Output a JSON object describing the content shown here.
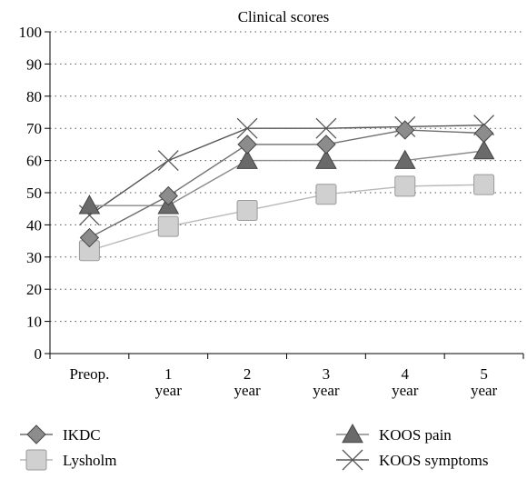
{
  "chart_data": {
    "type": "line",
    "title": "Clinical scores",
    "xlabel": "",
    "ylabel": "",
    "ylim": [
      0,
      100
    ],
    "yticks": [
      0,
      10,
      20,
      30,
      40,
      50,
      60,
      70,
      80,
      90,
      100
    ],
    "grid": "dotted-horizontal",
    "legend_position": "bottom",
    "categories": [
      {
        "line1": "Preop.",
        "line2": ""
      },
      {
        "line1": "1",
        "line2": "year"
      },
      {
        "line1": "2",
        "line2": "year"
      },
      {
        "line1": "3",
        "line2": "year"
      },
      {
        "line1": "4",
        "line2": "year"
      },
      {
        "line1": "5",
        "line2": "year"
      }
    ],
    "series": [
      {
        "name": "IKDC",
        "marker": "diamond",
        "color": "#8c8c8c",
        "line_color": "#6e6e6e",
        "values": [
          36,
          49,
          65,
          65,
          69.5,
          68.5
        ]
      },
      {
        "name": "KOOS pain",
        "marker": "triangle",
        "color": "#6a6a6a",
        "line_color": "#8a8a8a",
        "values": [
          46,
          46,
          60,
          60,
          60,
          63
        ]
      },
      {
        "name": "Lysholm",
        "marker": "square",
        "color": "#d0d0d0",
        "line_color": "#b8b8b8",
        "values": [
          32,
          39.5,
          44.5,
          49.5,
          52,
          52.5
        ]
      },
      {
        "name": "KOOS symptoms",
        "marker": "x",
        "color": "#555555",
        "line_color": "#555555",
        "values": [
          43,
          60,
          70,
          70,
          70.5,
          71
        ]
      }
    ]
  }
}
